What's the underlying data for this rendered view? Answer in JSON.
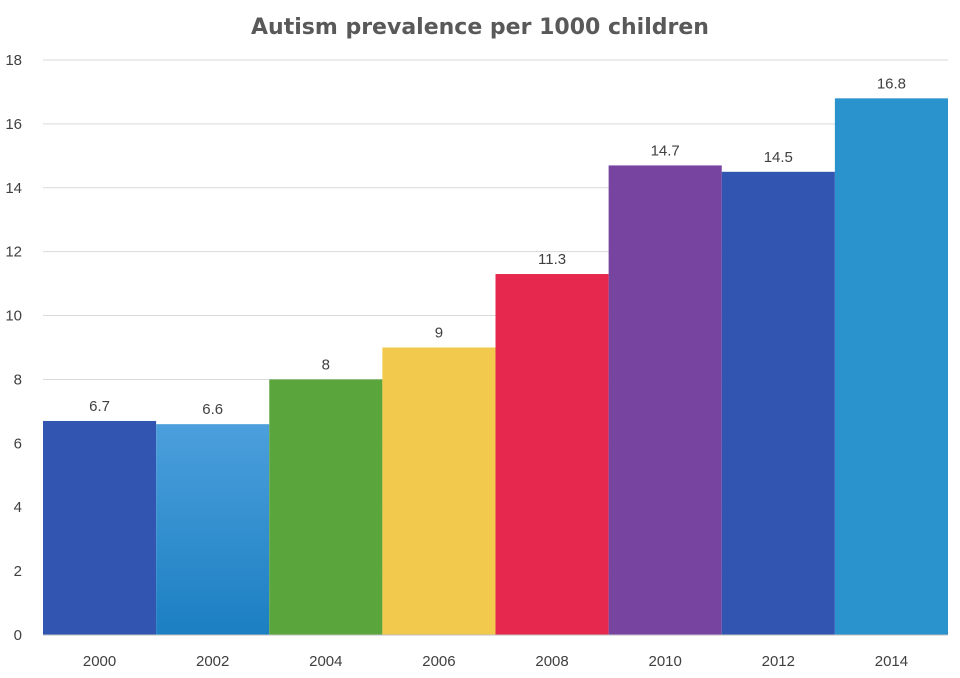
{
  "chart_data": {
    "type": "bar",
    "title": "Autism prevalence per 1000 children",
    "xlabel": "",
    "ylabel": "",
    "categories": [
      "2000",
      "2002",
      "2004",
      "2006",
      "2008",
      "2010",
      "2012",
      "2014"
    ],
    "values": [
      6.7,
      6.6,
      8,
      9,
      11.3,
      14.7,
      14.5,
      16.8
    ],
    "data_labels": [
      "6.7",
      "6.6",
      "8",
      "9",
      "11.3",
      "14.7",
      "14.5",
      "16.8"
    ],
    "ylim": [
      0,
      18
    ],
    "yticks": [
      "0",
      "2",
      "4",
      "6",
      "8",
      "10",
      "12",
      "14",
      "16",
      "18"
    ],
    "grid": true,
    "legend": "none",
    "bar_colors": [
      "#3255b1",
      "gradient:#4c9fdc-#1b7fc2",
      "#5aa63c",
      "#f2c94c",
      "#e6284e",
      "#7744a0",
      "#3255b1",
      "#2a92cc"
    ]
  }
}
